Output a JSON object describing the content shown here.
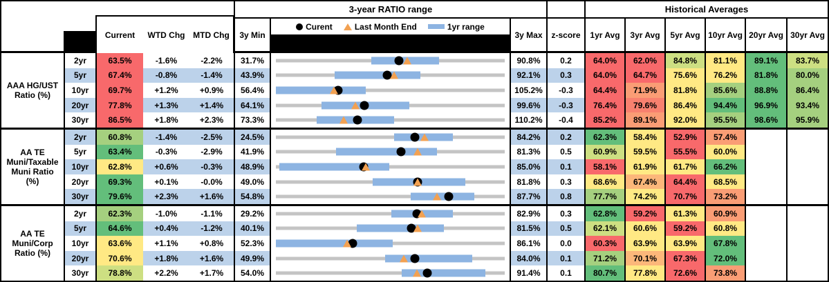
{
  "colors": {
    "heat_red": "#F8696B",
    "heat_red_orange": "#F8816F",
    "heat_orange": "#FA9D75",
    "heat_yellow_orange": "#FCB77A",
    "heat_yellow": "#FFE984",
    "heat_yellow_green": "#CDDF82",
    "heat_light_green": "#A5D07F",
    "heat_green": "#63BE7B",
    "row_stripe_blue": "#BCD2EA",
    "range_bar_blue": "#8DB4E2",
    "track_gray": "#C4C4C4",
    "marker_orange": "#F2A152",
    "marker_black": "#000000"
  },
  "chart_data": {
    "type": "table",
    "header": {
      "range_title": "3-year RATIO range",
      "hist_title": "Historical Averages",
      "col_current": "Current",
      "col_wtd": "WTD Chg",
      "col_mtd": "MTD Chg",
      "col_3y_min": "3y Min",
      "col_3y_max": "3y Max",
      "col_zscore": "z-score",
      "avg_cols": [
        "1yr Avg",
        "3yr Avg",
        "5yr Avg",
        "10yr Avg",
        "20yr Avg",
        "30yr Avg"
      ]
    },
    "legend": {
      "current": "Curent",
      "last_month": "Last Month End",
      "range": "1yr range"
    },
    "groups": [
      {
        "label": "AAA HG/UST Ratio (%)",
        "label_lines": [
          "AAA HG/UST",
          "Ratio (%)"
        ],
        "rows": [
          {
            "tenor": "2yr",
            "current": "63.5%",
            "current_color": "red",
            "wtd_chg": "-1.6%",
            "mtd_chg": "-2.2%",
            "min_3y": "31.7%",
            "max_3y": "90.8%",
            "z_score": "0.2",
            "range_chart": {
              "min": 31.7,
              "max": 90.8,
              "one_yr_range": [
                56.4,
                73.8
              ],
              "current": 63.5,
              "last_month_end": 65.7
            },
            "averages": [
              {
                "value": "64.0%",
                "color": "red"
              },
              {
                "value": "62.0%",
                "color": "red"
              },
              {
                "value": "84.8%",
                "color": "ygreen"
              },
              {
                "value": "81.1%",
                "color": "yellow"
              },
              {
                "value": "89.1%",
                "color": "green"
              },
              {
                "value": "83.7%",
                "color": "ygreen"
              }
            ]
          },
          {
            "tenor": "5yr",
            "current": "67.4%",
            "current_color": "red",
            "wtd_chg": "-0.8%",
            "mtd_chg": "-1.4%",
            "min_3y": "43.9%",
            "max_3y": "92.1%",
            "z_score": "0.3",
            "range_chart": {
              "min": 43.9,
              "max": 92.1,
              "one_yr_range": [
                56.3,
                74.4
              ],
              "current": 67.4,
              "last_month_end": 68.8
            },
            "averages": [
              {
                "value": "64.0%",
                "color": "red"
              },
              {
                "value": "64.7%",
                "color": "red"
              },
              {
                "value": "75.6%",
                "color": "yellow"
              },
              {
                "value": "76.2%",
                "color": "yellow"
              },
              {
                "value": "81.8%",
                "color": "green"
              },
              {
                "value": "80.0%",
                "color": "lgreen"
              }
            ]
          },
          {
            "tenor": "10yr",
            "current": "69.7%",
            "current_color": "red",
            "wtd_chg": "+1.2%",
            "mtd_chg": "+0.9%",
            "min_3y": "56.4%",
            "max_3y": "105.2%",
            "z_score": "-0.3",
            "range_chart": {
              "min": 56.4,
              "max": 105.2,
              "one_yr_range": [
                56.4,
                75.5
              ],
              "current": 69.7,
              "last_month_end": 68.8
            },
            "averages": [
              {
                "value": "64.4%",
                "color": "red"
              },
              {
                "value": "71.9%",
                "color": "orange"
              },
              {
                "value": "81.8%",
                "color": "yellow"
              },
              {
                "value": "85.6%",
                "color": "lgreen"
              },
              {
                "value": "88.8%",
                "color": "green"
              },
              {
                "value": "86.4%",
                "color": "lgreen"
              }
            ]
          },
          {
            "tenor": "20yr",
            "current": "77.8%",
            "current_color": "red",
            "wtd_chg": "+1.3%",
            "mtd_chg": "+1.4%",
            "min_3y": "64.1%",
            "max_3y": "99.6%",
            "z_score": "-0.3",
            "range_chart": {
              "min": 64.1,
              "max": 99.6,
              "one_yr_range": [
                71.2,
                84.8
              ],
              "current": 77.8,
              "last_month_end": 76.4
            },
            "averages": [
              {
                "value": "76.4%",
                "color": "red"
              },
              {
                "value": "79.6%",
                "color": "redorange"
              },
              {
                "value": "86.4%",
                "color": "yellow"
              },
              {
                "value": "94.4%",
                "color": "green"
              },
              {
                "value": "96.9%",
                "color": "green"
              },
              {
                "value": "93.4%",
                "color": "lgreen"
              }
            ]
          },
          {
            "tenor": "30yr",
            "current": "86.5%",
            "current_color": "red",
            "wtd_chg": "+1.8%",
            "mtd_chg": "+2.3%",
            "min_3y": "73.3%",
            "max_3y": "110.2%",
            "z_score": "-0.4",
            "range_chart": {
              "min": 73.3,
              "max": 110.2,
              "one_yr_range": [
                79.9,
                92.4
              ],
              "current": 86.5,
              "last_month_end": 84.2
            },
            "averages": [
              {
                "value": "85.2%",
                "color": "red"
              },
              {
                "value": "89.1%",
                "color": "orange"
              },
              {
                "value": "92.0%",
                "color": "yellow"
              },
              {
                "value": "95.5%",
                "color": "lgreen"
              },
              {
                "value": "98.6%",
                "color": "green"
              },
              {
                "value": "95.9%",
                "color": "lgreen"
              }
            ]
          }
        ]
      },
      {
        "label": "AA TE Muni/Taxable Muni Ratio (%)",
        "label_lines": [
          "AA TE",
          "Muni/Taxable",
          "Muni Ratio",
          "(%)"
        ],
        "rows": [
          {
            "tenor": "2yr",
            "current": "60.8%",
            "current_color": "lgreen",
            "wtd_chg": "-1.4%",
            "mtd_chg": "-2.5%",
            "min_3y": "24.5%",
            "max_3y": "84.2%",
            "z_score": "0.2",
            "range_chart": {
              "min": 24.5,
              "max": 84.2,
              "one_yr_range": [
                55.4,
                70.6
              ],
              "current": 60.8,
              "last_month_end": 63.3
            },
            "averages": [
              {
                "value": "62.3%",
                "color": "green"
              },
              {
                "value": "58.4%",
                "color": "yellow"
              },
              {
                "value": "52.9%",
                "color": "red"
              },
              {
                "value": "57.4%",
                "color": "orange"
              },
              {
                "value": "",
                "color": ""
              },
              {
                "value": "",
                "color": ""
              }
            ]
          },
          {
            "tenor": "5yr",
            "current": "63.4%",
            "current_color": "green",
            "wtd_chg": "-0.3%",
            "mtd_chg": "-2.9%",
            "min_3y": "41.9%",
            "max_3y": "81.3%",
            "z_score": "0.5",
            "range_chart": {
              "min": 41.9,
              "max": 81.3,
              "one_yr_range": [
                52.3,
                69.6
              ],
              "current": 63.4,
              "last_month_end": 66.3
            },
            "averages": [
              {
                "value": "60.9%",
                "color": "ygreen"
              },
              {
                "value": "59.5%",
                "color": "yellow"
              },
              {
                "value": "55.5%",
                "color": "red"
              },
              {
                "value": "60.0%",
                "color": "yellow"
              },
              {
                "value": "",
                "color": ""
              },
              {
                "value": "",
                "color": ""
              }
            ]
          },
          {
            "tenor": "10yr",
            "current": "62.8%",
            "current_color": "yellow",
            "wtd_chg": "+0.6%",
            "mtd_chg": "-0.3%",
            "min_3y": "48.9%",
            "max_3y": "85.0%",
            "z_score": "0.1",
            "range_chart": {
              "min": 48.9,
              "max": 85.0,
              "one_yr_range": [
                49.4,
                66.8
              ],
              "current": 62.8,
              "last_month_end": 63.1
            },
            "averages": [
              {
                "value": "58.1%",
                "color": "red"
              },
              {
                "value": "61.9%",
                "color": "yellow"
              },
              {
                "value": "61.7%",
                "color": "yellow"
              },
              {
                "value": "66.2%",
                "color": "green"
              },
              {
                "value": "",
                "color": ""
              },
              {
                "value": "",
                "color": ""
              }
            ]
          },
          {
            "tenor": "20yr",
            "current": "69.3%",
            "current_color": "green",
            "wtd_chg": "+0.1%",
            "mtd_chg": "-0.0%",
            "min_3y": "49.0%",
            "max_3y": "81.8%",
            "z_score": "0.3",
            "range_chart": {
              "min": 49.0,
              "max": 81.8,
              "one_yr_range": [
                62.9,
                76.2
              ],
              "current": 69.3,
              "last_month_end": 69.3
            },
            "averages": [
              {
                "value": "68.6%",
                "color": "yellow"
              },
              {
                "value": "67.4%",
                "color": "yorange"
              },
              {
                "value": "64.4%",
                "color": "red"
              },
              {
                "value": "68.5%",
                "color": "yellow"
              },
              {
                "value": "",
                "color": ""
              },
              {
                "value": "",
                "color": ""
              }
            ]
          },
          {
            "tenor": "30yr",
            "current": "79.6%",
            "current_color": "green",
            "wtd_chg": "+2.3%",
            "mtd_chg": "+1.6%",
            "min_3y": "54.8%",
            "max_3y": "87.7%",
            "z_score": "0.8",
            "range_chart": {
              "min": 54.8,
              "max": 87.7,
              "one_yr_range": [
                74.2,
                83.3
              ],
              "current": 79.6,
              "last_month_end": 78.0
            },
            "averages": [
              {
                "value": "77.7%",
                "color": "lgreen"
              },
              {
                "value": "74.2%",
                "color": "yellow"
              },
              {
                "value": "70.7%",
                "color": "red"
              },
              {
                "value": "73.2%",
                "color": "orange"
              },
              {
                "value": "",
                "color": ""
              },
              {
                "value": "",
                "color": ""
              }
            ]
          }
        ]
      },
      {
        "label": "AA TE Muni/Corp Ratio (%)",
        "label_lines": [
          "AA TE",
          "Muni/Corp",
          "Ratio (%)"
        ],
        "rows": [
          {
            "tenor": "2yr",
            "current": "62.3%",
            "current_color": "lgreen",
            "wtd_chg": "-1.0%",
            "mtd_chg": "-1.1%",
            "min_3y": "29.2%",
            "max_3y": "82.9%",
            "z_score": "0.3",
            "range_chart": {
              "min": 29.2,
              "max": 82.9,
              "one_yr_range": [
                56.3,
                70.7
              ],
              "current": 62.3,
              "last_month_end": 63.4
            },
            "averages": [
              {
                "value": "62.8%",
                "color": "green"
              },
              {
                "value": "59.2%",
                "color": "red"
              },
              {
                "value": "61.3%",
                "color": "yellow"
              },
              {
                "value": "60.9%",
                "color": "orange"
              },
              {
                "value": "",
                "color": ""
              },
              {
                "value": "",
                "color": ""
              }
            ]
          },
          {
            "tenor": "5yr",
            "current": "64.6%",
            "current_color": "green",
            "wtd_chg": "+0.4%",
            "mtd_chg": "-1.2%",
            "min_3y": "40.1%",
            "max_3y": "81.5%",
            "z_score": "0.5",
            "range_chart": {
              "min": 40.1,
              "max": 81.5,
              "one_yr_range": [
                54.7,
                70.5
              ],
              "current": 64.6,
              "last_month_end": 65.8
            },
            "averages": [
              {
                "value": "62.1%",
                "color": "ygreen"
              },
              {
                "value": "60.6%",
                "color": "yellow"
              },
              {
                "value": "59.2%",
                "color": "red"
              },
              {
                "value": "60.8%",
                "color": "yellow"
              },
              {
                "value": "",
                "color": ""
              },
              {
                "value": "",
                "color": ""
              }
            ]
          },
          {
            "tenor": "10yr",
            "current": "63.6%",
            "current_color": "yellow",
            "wtd_chg": "+1.1%",
            "mtd_chg": "+0.8%",
            "min_3y": "52.3%",
            "max_3y": "86.1%",
            "z_score": "0.0",
            "range_chart": {
              "min": 52.3,
              "max": 86.1,
              "one_yr_range": [
                52.3,
                69.6
              ],
              "current": 63.6,
              "last_month_end": 62.8
            },
            "averages": [
              {
                "value": "60.3%",
                "color": "red"
              },
              {
                "value": "63.9%",
                "color": "yellow"
              },
              {
                "value": "63.9%",
                "color": "yellow"
              },
              {
                "value": "67.8%",
                "color": "green"
              },
              {
                "value": "",
                "color": ""
              },
              {
                "value": "",
                "color": ""
              }
            ]
          },
          {
            "tenor": "20yr",
            "current": "70.6%",
            "current_color": "yellow",
            "wtd_chg": "+1.8%",
            "mtd_chg": "+1.6%",
            "min_3y": "49.9%",
            "max_3y": "84.0%",
            "z_score": "0.1",
            "range_chart": {
              "min": 49.9,
              "max": 84.0,
              "one_yr_range": [
                66.2,
                79.2
              ],
              "current": 70.6,
              "last_month_end": 69.0
            },
            "averages": [
              {
                "value": "71.2%",
                "color": "lgreen"
              },
              {
                "value": "70.1%",
                "color": "yorange"
              },
              {
                "value": "67.3%",
                "color": "red"
              },
              {
                "value": "72.0%",
                "color": "green"
              },
              {
                "value": "",
                "color": ""
              },
              {
                "value": "",
                "color": ""
              }
            ]
          },
          {
            "tenor": "30yr",
            "current": "78.8%",
            "current_color": "ygreen",
            "wtd_chg": "+2.2%",
            "mtd_chg": "+1.7%",
            "min_3y": "54.0%",
            "max_3y": "91.4%",
            "z_score": "0.1",
            "range_chart": {
              "min": 54.0,
              "max": 91.4,
              "one_yr_range": [
                74.6,
                88.2
              ],
              "current": 78.8,
              "last_month_end": 77.1
            },
            "averages": [
              {
                "value": "80.7%",
                "color": "green"
              },
              {
                "value": "77.8%",
                "color": "yellow"
              },
              {
                "value": "72.6%",
                "color": "red"
              },
              {
                "value": "73.8%",
                "color": "orange"
              },
              {
                "value": "",
                "color": ""
              },
              {
                "value": "",
                "color": ""
              }
            ]
          }
        ]
      }
    ]
  }
}
